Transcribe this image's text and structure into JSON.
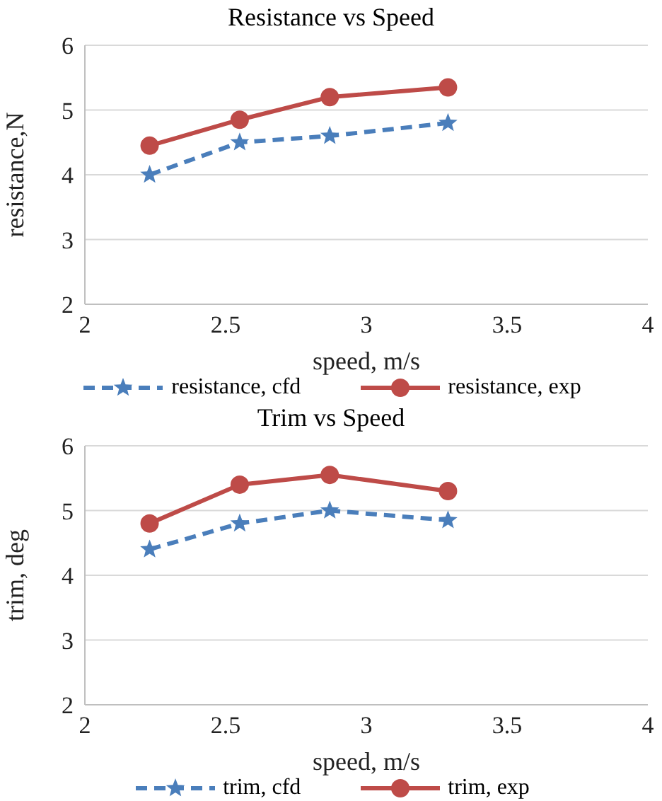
{
  "chart_data": [
    {
      "type": "line",
      "title": "Resistance vs Speed",
      "xlabel": "speed, m/s",
      "ylabel": "resistance,N",
      "xlim": [
        2,
        4
      ],
      "xticks": [
        2,
        2.5,
        3,
        3.5,
        4
      ],
      "ylim": [
        2,
        6
      ],
      "yticks": [
        2,
        3,
        4,
        5,
        6
      ],
      "grid": "y",
      "legend": "bottom",
      "series": [
        {
          "name": "resistance, cfd",
          "color": "#4a7ebb",
          "x": [
            2.23,
            2.55,
            2.87,
            3.29
          ],
          "values": [
            4.0,
            4.5,
            4.6,
            4.8
          ],
          "marker": "star",
          "line_style": "dashed"
        },
        {
          "name": "resistance, exp",
          "color": "#be4b48",
          "x": [
            2.23,
            2.55,
            2.87,
            3.29
          ],
          "values": [
            4.45,
            4.85,
            5.2,
            5.35
          ],
          "marker": "circle",
          "line_style": "solid"
        }
      ]
    },
    {
      "type": "line",
      "title": "Trim vs Speed",
      "xlabel": "speed, m/s",
      "ylabel": "trim, deg",
      "xlim": [
        2,
        4
      ],
      "xticks": [
        2,
        2.5,
        3,
        3.5,
        4
      ],
      "ylim": [
        2,
        6
      ],
      "yticks": [
        2,
        3,
        4,
        5,
        6
      ],
      "grid": "y",
      "legend": "bottom",
      "series": [
        {
          "name": "trim, cfd",
          "color": "#4a7ebb",
          "x": [
            2.23,
            2.55,
            2.87,
            3.29
          ],
          "values": [
            4.4,
            4.8,
            5.0,
            4.85
          ],
          "marker": "star",
          "line_style": "dashed"
        },
        {
          "name": "trim, exp",
          "color": "#be4b48",
          "x": [
            2.23,
            2.55,
            2.87,
            3.29
          ],
          "values": [
            4.8,
            5.4,
            5.55,
            5.3
          ],
          "marker": "circle",
          "line_style": "solid"
        }
      ]
    }
  ]
}
